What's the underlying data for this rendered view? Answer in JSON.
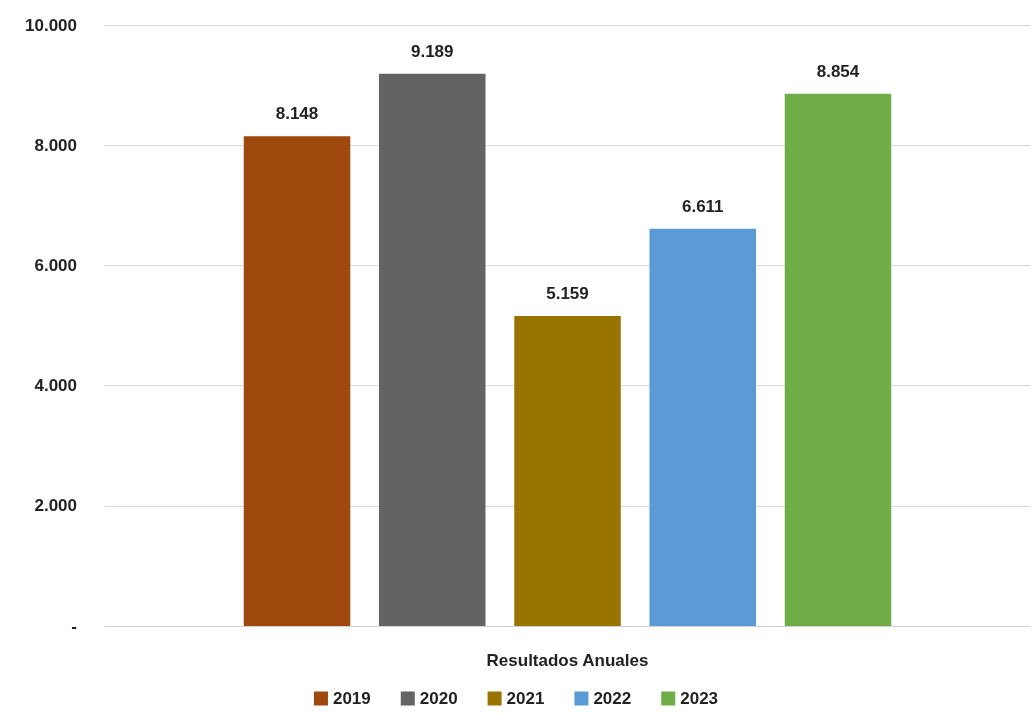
{
  "chart_data": {
    "type": "bar",
    "categories": [
      "Resultados Anuales"
    ],
    "series": [
      {
        "name": "2019",
        "color": "#9e480e",
        "values": [
          8148
        ],
        "value_labels": [
          "8.148"
        ]
      },
      {
        "name": "2020",
        "color": "#636363",
        "values": [
          9189
        ],
        "value_labels": [
          "9.189"
        ]
      },
      {
        "name": "2021",
        "color": "#997300",
        "values": [
          5159
        ],
        "value_labels": [
          "5.159"
        ]
      },
      {
        "name": "2022",
        "color": "#5b9bd5",
        "values": [
          6611
        ],
        "value_labels": [
          "6.611"
        ]
      },
      {
        "name": "2023",
        "color": "#70ad47",
        "values": [
          8854
        ],
        "value_labels": [
          "8.854"
        ]
      }
    ],
    "ylim": [
      0,
      10000
    ],
    "yticks": [
      {
        "value": 0,
        "label": "-"
      },
      {
        "value": 2000,
        "label": "2.000"
      },
      {
        "value": 4000,
        "label": "4.000"
      },
      {
        "value": 6000,
        "label": "6.000"
      },
      {
        "value": 8000,
        "label": "8.000"
      },
      {
        "value": 10000,
        "label": "10.000"
      }
    ],
    "grid": "y",
    "legend": "bottom"
  }
}
